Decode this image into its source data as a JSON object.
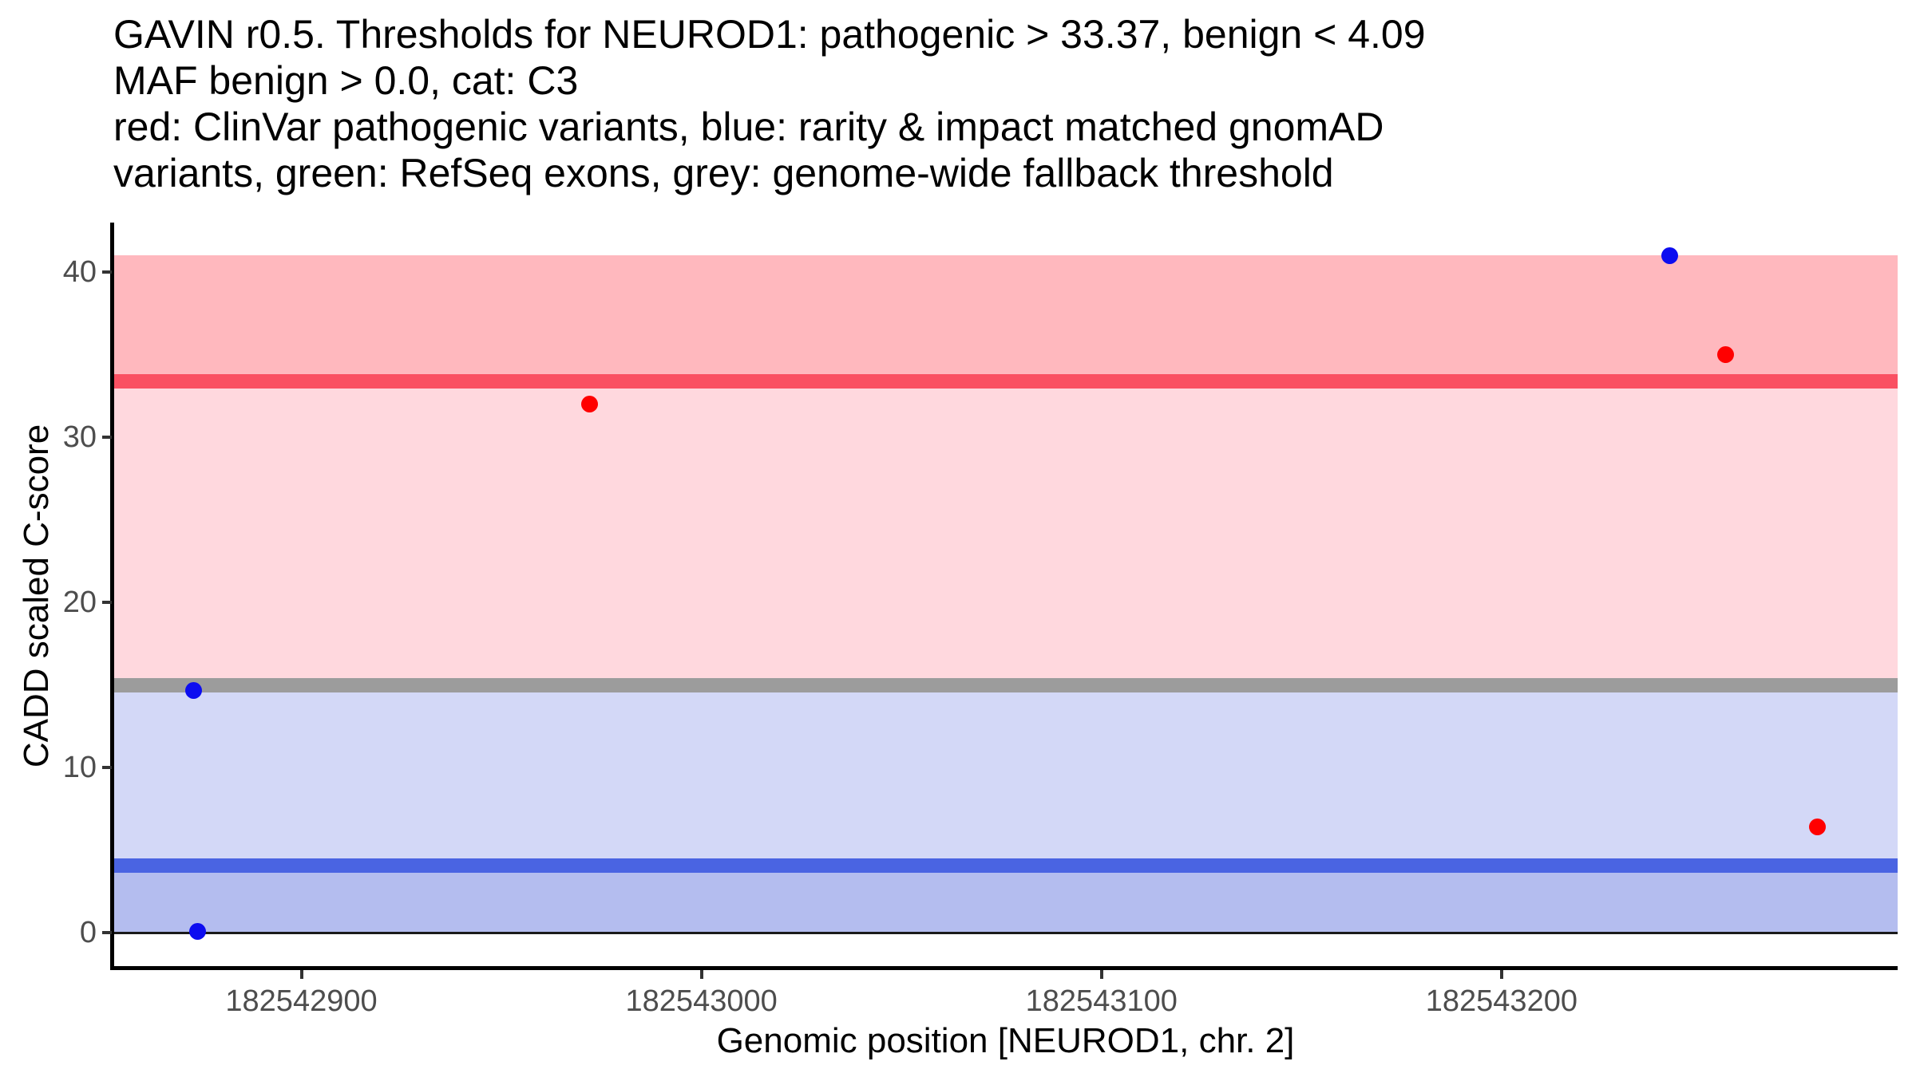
{
  "title": {
    "lines": [
      "GAVIN r0.5. Thresholds for NEUROD1: pathogenic > 33.37, benign < 4.09",
      "MAF benign > 0.0, cat: C3",
      "red: ClinVar pathogenic variants, blue: rarity & impact matched gnomAD",
      "variants, green: RefSeq exons, grey: genome-wide fallback threshold"
    ]
  },
  "chart_data": {
    "type": "scatter",
    "title": "GAVIN r0.5. Thresholds for NEUROD1: pathogenic > 33.37, benign < 4.09; MAF benign > 0.0, cat: C3",
    "xlabel": "Genomic position [NEUROD1, chr. 2]",
    "ylabel": "CADD scaled C-score",
    "x_ticks": [
      "182542900",
      "182543000",
      "182543100",
      "182543200"
    ],
    "x_tick_values": [
      182542900,
      182543000,
      182543100,
      182543200
    ],
    "y_ticks": [
      "0",
      "10",
      "20",
      "30",
      "40"
    ],
    "y_tick_values": [
      0,
      10,
      20,
      30,
      40
    ],
    "x_domain": [
      182542853,
      182543299
    ],
    "y_domain": [
      -2.2,
      43.0
    ],
    "grid": false,
    "legend": "none (legend described in title text)",
    "thresholds": {
      "pathogenic_gt": 33.37,
      "benign_lt": 4.09,
      "genome_wide_fallback": 15.0,
      "maf_benign_gt": 0.0,
      "category": "C3",
      "gene": "NEUROD1",
      "chromosome": "2"
    },
    "bands": [
      {
        "name": "pathogenic-zone-band",
        "from": 33.37,
        "to": 41.0,
        "color": "#FFB8BE"
      },
      {
        "name": "upper-intermediate-band",
        "from": 15.0,
        "to": 33.37,
        "color": "#FFD8DE"
      },
      {
        "name": "lower-intermediate-band",
        "from": 4.09,
        "to": 15.0,
        "color": "#D3D8F7"
      },
      {
        "name": "benign-zone-band",
        "from": 0.0,
        "to": 4.09,
        "color": "#B4BDEF"
      }
    ],
    "lines": [
      {
        "name": "pathogenic-threshold-line",
        "at": 33.37,
        "color": "#FA5062",
        "width": 18
      },
      {
        "name": "genome-wide-fallback-line",
        "at": 15.0,
        "color": "#9C9C9C",
        "width": 18
      },
      {
        "name": "benign-threshold-line",
        "at": 4.09,
        "color": "#4A64E2",
        "width": 18
      },
      {
        "name": "zero-line",
        "at": 0.0,
        "color": "#1A1A1A",
        "width": 3
      }
    ],
    "series": [
      {
        "name": "ClinVar pathogenic variants",
        "color": "#FF0000",
        "point_name": "clinvar-variant-point",
        "points": [
          {
            "x": 182542972,
            "y": 32.0
          },
          {
            "x": 182543256,
            "y": 35.0
          },
          {
            "x": 182543279,
            "y": 6.4
          }
        ]
      },
      {
        "name": "rarity & impact matched gnomAD variants",
        "color": "#0D0DF0",
        "point_name": "gnomad-variant-point",
        "points": [
          {
            "x": 182542873,
            "y": 14.7
          },
          {
            "x": 182542874,
            "y": 0.1
          },
          {
            "x": 182543242,
            "y": 41.0
          }
        ]
      }
    ],
    "point_diameter": 21
  }
}
